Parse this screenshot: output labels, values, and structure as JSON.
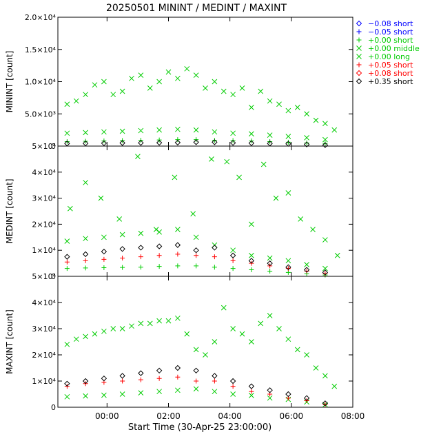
{
  "chart_data": {
    "type": "scatter",
    "title": "20250501 MININT / MEDINT / MAXINT",
    "xlabel": "Start Time (30-Apr-25 23:00:00)",
    "xlim": [
      -0.6,
      9.0
    ],
    "x_ticks": [
      {
        "value": 1,
        "label": "00:00"
      },
      {
        "value": 3,
        "label": "02:00"
      },
      {
        "value": 5,
        "label": "04:00"
      },
      {
        "value": 7,
        "label": "06:00"
      },
      {
        "value": 9,
        "label": "08:00"
      }
    ],
    "legend_position": "right, outside plot area, top",
    "legend": [
      {
        "symbol": "◇",
        "label": "−0.08 short",
        "color": "#0000ff"
      },
      {
        "symbol": "+",
        "label": "−0.05 short",
        "color": "#0000ff"
      },
      {
        "symbol": "+",
        "label": "+0.00 short",
        "color": "#00cc00"
      },
      {
        "symbol": "×",
        "label": "+0.00 middle",
        "color": "#00cc00"
      },
      {
        "symbol": "×",
        "label": "+0.00 long",
        "color": "#00cc00"
      },
      {
        "symbol": "+",
        "label": "+0.05 short",
        "color": "#ff0000"
      },
      {
        "symbol": "◇",
        "label": "+0.08 short",
        "color": "#ff0000"
      },
      {
        "symbol": "◇",
        "label": "+0.35 short",
        "color": "#000000"
      }
    ],
    "panels": [
      {
        "ylabel": "MININT [count]",
        "ylim": [
          0,
          20000
        ],
        "y_ticks": [
          {
            "value": 0,
            "label": "0"
          },
          {
            "value": 5000,
            "label": "5.0×10³"
          },
          {
            "value": 10000,
            "label": "1.0×10⁴"
          },
          {
            "value": 15000,
            "label": "1.5×10⁴"
          },
          {
            "value": 20000,
            "label": "2.0×10⁴"
          }
        ],
        "series": [
          {
            "name": "+0.00 long",
            "marker": "x",
            "color": "#00cc00",
            "x": [
              -0.3,
              0.0,
              0.3,
              0.6,
              0.9,
              1.2,
              1.5,
              1.8,
              2.1,
              2.4,
              2.7,
              3.0,
              3.3,
              3.6,
              3.9,
              4.2,
              4.5,
              4.8,
              5.1,
              5.4,
              5.7,
              6.0,
              6.3,
              6.6,
              6.9,
              7.2,
              7.5,
              7.8,
              8.1,
              8.4
            ],
            "y": [
              6500,
              7000,
              8000,
              9500,
              10000,
              8000,
              8500,
              10500,
              11000,
              9000,
              10000,
              11500,
              10500,
              12000,
              11000,
              9000,
              10000,
              8500,
              8000,
              9000,
              6000,
              8500,
              7000,
              6500,
              5500,
              6000,
              5000,
              4000,
              3500,
              2500
            ]
          },
          {
            "name": "+0.00 middle",
            "marker": "x",
            "color": "#00cc00",
            "x": [
              -0.3,
              0.3,
              0.9,
              1.5,
              2.1,
              2.7,
              3.3,
              3.9,
              4.5,
              5.1,
              5.7,
              6.3,
              6.9,
              7.5,
              8.1
            ],
            "y": [
              2000,
              2100,
              2200,
              2300,
              2400,
              2500,
              2600,
              2500,
              2200,
              2000,
              1900,
              1700,
              1500,
              1300,
              1000
            ]
          },
          {
            "name": "+0.00 short",
            "marker": "+",
            "color": "#00cc00",
            "x": [
              -0.3,
              0.3,
              0.9,
              1.5,
              2.1,
              2.7,
              3.3,
              3.9,
              4.5,
              5.1,
              5.7,
              6.3,
              6.9,
              7.5,
              8.1
            ],
            "y": [
              700,
              750,
              800,
              850,
              900,
              950,
              1000,
              1000,
              900,
              850,
              800,
              700,
              600,
              500,
              400
            ]
          },
          {
            "name": "+0.35 short",
            "marker": "d",
            "color": "#000000",
            "x": [
              -0.3,
              0.3,
              0.9,
              1.5,
              2.1,
              2.7,
              3.3,
              3.9,
              4.5,
              5.1,
              5.7,
              6.3,
              6.9,
              7.5,
              8.1
            ],
            "y": [
              400,
              420,
              450,
              480,
              500,
              520,
              550,
              600,
              600,
              500,
              450,
              400,
              350,
              250,
              150
            ]
          }
        ]
      },
      {
        "ylabel": "MEDINT [count]",
        "ylim": [
          0,
          50000
        ],
        "y_ticks": [
          {
            "value": 0,
            "label": "0"
          },
          {
            "value": 10000,
            "label": "1×10⁴"
          },
          {
            "value": 20000,
            "label": "2×10⁴"
          },
          {
            "value": 30000,
            "label": "3×10⁴"
          },
          {
            "value": 40000,
            "label": "4×10⁴"
          },
          {
            "value": 50000,
            "label": "5×10⁴"
          }
        ],
        "series": [
          {
            "name": "+0.00 long",
            "marker": "x",
            "color": "#00cc00",
            "x": [
              -0.2,
              0.3,
              0.8,
              1.4,
              2.0,
              2.6,
              3.2,
              3.8,
              4.4,
              4.9,
              5.3,
              5.7,
              6.1,
              6.5,
              6.9,
              7.3,
              7.7,
              8.1,
              8.5
            ],
            "y": [
              26000,
              36000,
              30000,
              22000,
              46000,
              18000,
              38000,
              24000,
              45000,
              44000,
              38000,
              20000,
              43000,
              30000,
              32000,
              22000,
              18000,
              14000,
              8000
            ]
          },
          {
            "name": "+0.00 middle",
            "marker": "x",
            "color": "#00cc00",
            "x": [
              -0.3,
              0.3,
              0.9,
              1.5,
              2.1,
              2.7,
              3.3,
              3.9,
              4.5,
              5.1,
              5.7,
              6.3,
              6.9,
              7.5,
              8.1
            ],
            "y": [
              13500,
              14500,
              15000,
              16000,
              16500,
              17000,
              18000,
              15000,
              12000,
              10000,
              8000,
              7000,
              6000,
              4500,
              3000
            ]
          },
          {
            "name": "+0.00 short",
            "marker": "+",
            "color": "#00cc00",
            "x": [
              -0.3,
              0.3,
              0.9,
              1.5,
              2.1,
              2.7,
              3.3,
              3.9,
              4.5,
              5.1,
              5.7,
              6.3,
              6.9,
              7.5,
              8.1
            ],
            "y": [
              3000,
              3200,
              3300,
              3400,
              3500,
              3800,
              4000,
              4000,
              3500,
              3000,
              2500,
              2000,
              1500,
              1000,
              500
            ]
          },
          {
            "name": "+0.05 short",
            "marker": "+",
            "color": "#ff0000",
            "x": [
              -0.3,
              0.3,
              0.9,
              1.5,
              2.1,
              2.7,
              3.3,
              3.9,
              4.5,
              5.1,
              5.7,
              6.3,
              6.9,
              7.5,
              8.1
            ],
            "y": [
              5500,
              6000,
              6500,
              7000,
              7500,
              8000,
              8500,
              8000,
              7500,
              6000,
              5000,
              4000,
              3000,
              2000,
              1000
            ]
          },
          {
            "name": "+0.35 short",
            "marker": "d",
            "color": "#000000",
            "x": [
              -0.3,
              0.3,
              0.9,
              1.5,
              2.1,
              2.7,
              3.3,
              3.9,
              4.5,
              5.1,
              5.7,
              6.3,
              6.9,
              7.5,
              8.1
            ],
            "y": [
              7500,
              8500,
              9500,
              10500,
              11000,
              11500,
              12000,
              10000,
              11000,
              8000,
              6000,
              5000,
              3500,
              2500,
              1500
            ]
          }
        ]
      },
      {
        "ylabel": "MAXINT [count]",
        "ylim": [
          0,
          50000
        ],
        "y_ticks": [
          {
            "value": 0,
            "label": "0"
          },
          {
            "value": 10000,
            "label": "1×10⁴"
          },
          {
            "value": 20000,
            "label": "2×10⁴"
          },
          {
            "value": 30000,
            "label": "3×10⁴"
          },
          {
            "value": 40000,
            "label": "4×10⁴"
          },
          {
            "value": 50000,
            "label": "5×10⁴"
          }
        ],
        "series": [
          {
            "name": "+0.00 long",
            "marker": "x",
            "color": "#00cc00",
            "x": [
              -0.3,
              0.0,
              0.3,
              0.6,
              0.9,
              1.2,
              1.5,
              1.8,
              2.1,
              2.4,
              2.7,
              3.0,
              3.3,
              3.6,
              3.9,
              4.2,
              4.5,
              4.8,
              5.1,
              5.4,
              5.7,
              6.0,
              6.3,
              6.6,
              6.9,
              7.2,
              7.5,
              7.8,
              8.1,
              8.4
            ],
            "y": [
              24000,
              26000,
              27000,
              28000,
              29000,
              30000,
              30000,
              31000,
              32000,
              32000,
              33000,
              33000,
              34000,
              28000,
              22000,
              20000,
              25000,
              38000,
              30000,
              28000,
              25000,
              32000,
              35000,
              30000,
              26000,
              22000,
              20000,
              15000,
              12000,
              8000
            ]
          },
          {
            "name": "+0.00 middle",
            "marker": "x",
            "color": "#00cc00",
            "x": [
              -0.3,
              0.3,
              0.9,
              1.5,
              2.1,
              2.7,
              3.3,
              3.9,
              4.5,
              5.1,
              5.7,
              6.3,
              6.9,
              7.5,
              8.1
            ],
            "y": [
              4000,
              4300,
              4600,
              5000,
              5500,
              6000,
              6500,
              7000,
              6000,
              5000,
              4500,
              3500,
              3000,
              2000,
              1000
            ]
          },
          {
            "name": "+0.05 short",
            "marker": "+",
            "color": "#ff0000",
            "x": [
              -0.3,
              0.3,
              0.9,
              1.5,
              2.1,
              2.7,
              3.3,
              3.9,
              4.5,
              5.1,
              5.7,
              6.3,
              6.9,
              7.5,
              8.1
            ],
            "y": [
              8000,
              9000,
              9500,
              10000,
              10500,
              11000,
              11500,
              10000,
              10000,
              8000,
              6000,
              5000,
              3500,
              2500,
              1000
            ]
          },
          {
            "name": "+0.35 short",
            "marker": "d",
            "color": "#000000",
            "x": [
              -0.3,
              0.3,
              0.9,
              1.5,
              2.1,
              2.7,
              3.3,
              3.9,
              4.5,
              5.1,
              5.7,
              6.3,
              6.9,
              7.5,
              8.1
            ],
            "y": [
              9000,
              10000,
              11000,
              12000,
              13000,
              14000,
              15000,
              14000,
              12000,
              10000,
              8000,
              6500,
              5000,
              3500,
              1500
            ]
          }
        ]
      }
    ]
  }
}
